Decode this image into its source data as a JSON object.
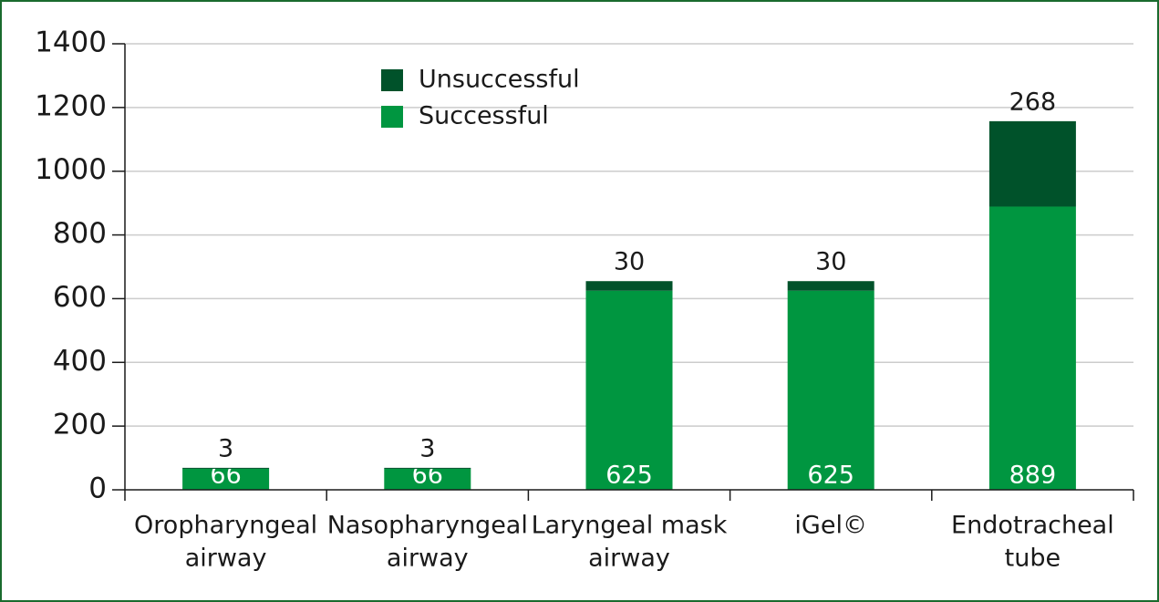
{
  "chart_data": {
    "type": "stacked_bar",
    "categories": [
      [
        "Oropharyngeal",
        "airway"
      ],
      [
        "Nasopharyngeal",
        "airway"
      ],
      [
        "Laryngeal mask",
        "airway"
      ],
      [
        "iGel©"
      ],
      [
        "Endotracheal",
        "tube"
      ]
    ],
    "series": [
      {
        "name": "Successful",
        "color": "#009640",
        "values": [
          66,
          66,
          625,
          625,
          889
        ]
      },
      {
        "name": "Unsuccessful",
        "color": "#00522a",
        "values": [
          3,
          3,
          30,
          30,
          268
        ]
      }
    ],
    "ylim": [
      0,
      1400
    ],
    "yticks": [
      0,
      200,
      400,
      600,
      800,
      1000,
      1200,
      1400
    ],
    "grid": true,
    "legend": "top"
  }
}
